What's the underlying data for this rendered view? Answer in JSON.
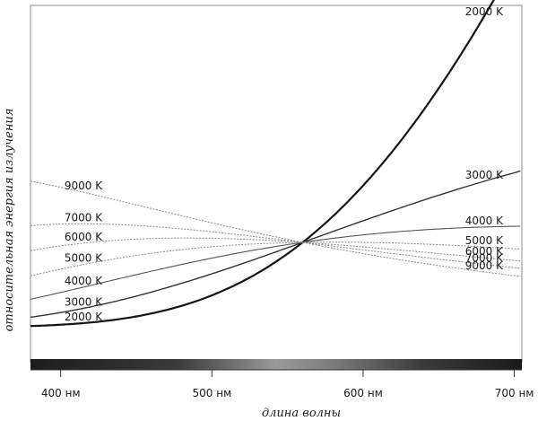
{
  "chart_data": {
    "type": "line",
    "title": "",
    "xlabel": "длина волны",
    "ylabel": "относительная энергия излучения",
    "x_unit": "нм",
    "xlim": [
      380,
      705
    ],
    "xticks": [
      {
        "value": 400,
        "label": "400 нм"
      },
      {
        "value": 500,
        "label": "500 нм"
      },
      {
        "value": 600,
        "label": "600 нм"
      },
      {
        "value": 700,
        "label": "700 нм"
      }
    ],
    "normalized_at_nm": 560,
    "grid": false,
    "legend": "none",
    "spectrum_bar": true,
    "series": [
      {
        "name": "2000 K",
        "kelvin": 2000,
        "label_end": "both"
      },
      {
        "name": "3000 K",
        "kelvin": 3000,
        "label_end": "both"
      },
      {
        "name": "4000 K",
        "kelvin": 4000,
        "label_end": "both"
      },
      {
        "name": "5000 K",
        "kelvin": 5000,
        "label_end": "both"
      },
      {
        "name": "6000 K",
        "kelvin": 6000,
        "label_end": "both"
      },
      {
        "name": "7000 K",
        "kelvin": 7000,
        "label_end": "both"
      },
      {
        "name": "9000 K",
        "kelvin": 9000,
        "label_end": "both"
      }
    ]
  }
}
